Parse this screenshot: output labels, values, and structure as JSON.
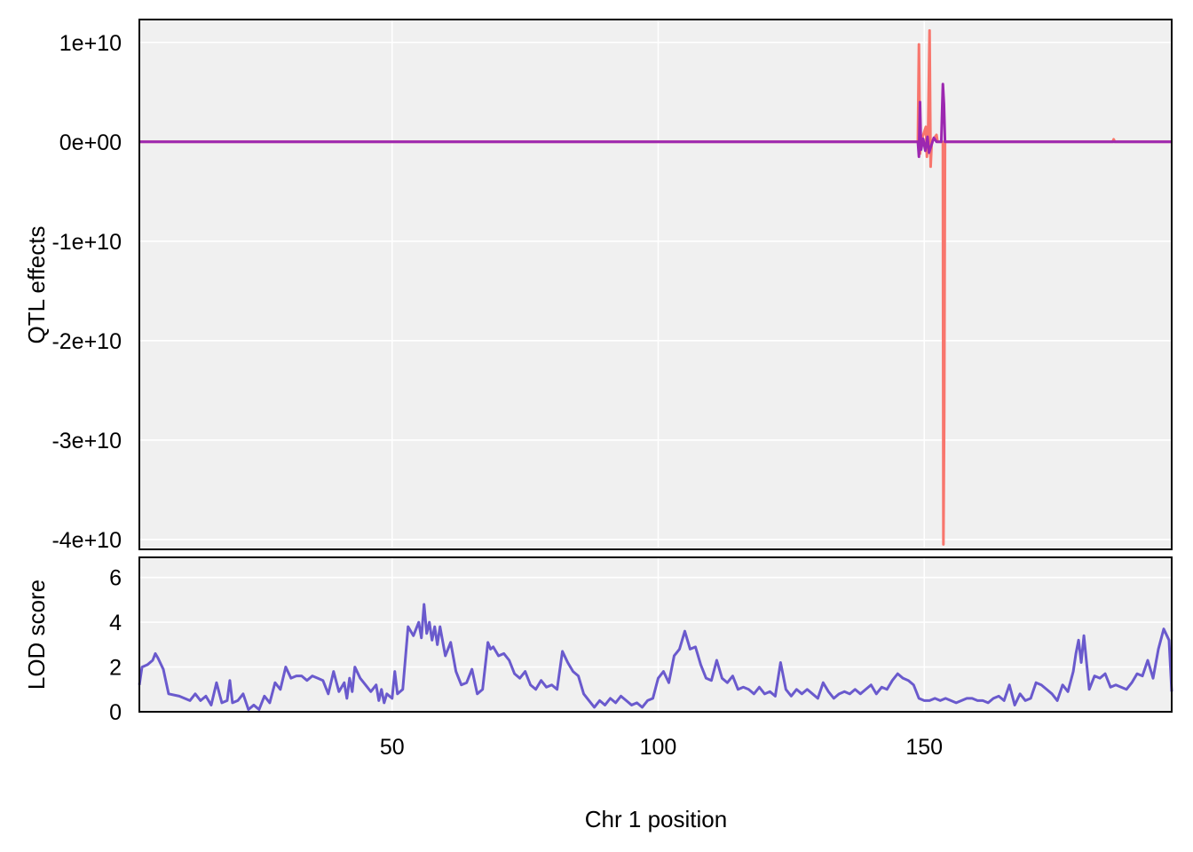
{
  "chart_data": [
    {
      "type": "line",
      "panel": "effects",
      "ylabel": "QTL effects",
      "xlim": [
        2.5,
        196.5
      ],
      "ylim": [
        -41000000000,
        12300000000
      ],
      "y_ticks": [
        {
          "value": 10000000000,
          "label": "1e+10"
        },
        {
          "value": 0,
          "label": "0e+00"
        },
        {
          "value": -10000000000,
          "label": "-1e+10"
        },
        {
          "value": -20000000000,
          "label": "-2e+10"
        },
        {
          "value": -30000000000,
          "label": "-3e+10"
        },
        {
          "value": -40000000000,
          "label": "-4e+10"
        }
      ],
      "grid": true,
      "series": [
        {
          "color": "#F8766D",
          "points": [
            [
              2.5,
              0
            ],
            [
              148.8,
              0
            ],
            [
              149.0,
              9800000000
            ],
            [
              149.2,
              -1200000000
            ],
            [
              149.4,
              0
            ],
            [
              150.3,
              1500000000
            ],
            [
              150.5,
              -1500000000
            ],
            [
              150.7,
              0
            ],
            [
              151.0,
              11200000000
            ],
            [
              151.2,
              -2500000000
            ],
            [
              151.4,
              0
            ],
            [
              152.3,
              700000000
            ],
            [
              152.5,
              0
            ],
            [
              153.5,
              0
            ],
            [
              153.6,
              -40500000000
            ],
            [
              153.75,
              -27500000000
            ],
            [
              153.9,
              0
            ],
            [
              185.4,
              0
            ],
            [
              185.6,
              250000000
            ],
            [
              185.8,
              0
            ],
            [
              196.5,
              0
            ]
          ]
        },
        {
          "color": "#9C27B0",
          "points": [
            [
              2.5,
              0
            ],
            [
              148.8,
              0
            ],
            [
              149.0,
              -1500000000
            ],
            [
              149.2,
              4000000000
            ],
            [
              149.4,
              -800000000
            ],
            [
              149.8,
              300000000
            ],
            [
              150.2,
              -900000000
            ],
            [
              150.6,
              500000000
            ],
            [
              150.9,
              -1100000000
            ],
            [
              151.3,
              -400000000
            ],
            [
              151.8,
              400000000
            ],
            [
              152.3,
              0
            ],
            [
              153.2,
              0
            ],
            [
              153.5,
              5800000000
            ],
            [
              153.7,
              3800000000
            ],
            [
              153.9,
              0
            ],
            [
              196.5,
              0
            ]
          ]
        }
      ]
    },
    {
      "type": "line",
      "panel": "lod",
      "ylabel": "LOD score",
      "xlabel": "Chr 1 position",
      "xlim": [
        2.5,
        196.5
      ],
      "ylim": [
        0,
        6.9
      ],
      "x_ticks": [
        {
          "value": 50,
          "label": "50"
        },
        {
          "value": 100,
          "label": "100"
        },
        {
          "value": 150,
          "label": "150"
        }
      ],
      "y_ticks": [
        {
          "value": 0,
          "label": "0"
        },
        {
          "value": 2,
          "label": "2"
        },
        {
          "value": 4,
          "label": "4"
        },
        {
          "value": 6,
          "label": "6"
        }
      ],
      "grid": true,
      "series": [
        {
          "color": "#6A5ACD",
          "points": [
            [
              2.5,
              1.2
            ],
            [
              3,
              2.0
            ],
            [
              4,
              2.1
            ],
            [
              5,
              2.3
            ],
            [
              5.5,
              2.6
            ],
            [
              6,
              2.4
            ],
            [
              7,
              1.9
            ],
            [
              8,
              0.8
            ],
            [
              10,
              0.7
            ],
            [
              12,
              0.5
            ],
            [
              13,
              0.8
            ],
            [
              14,
              0.5
            ],
            [
              15,
              0.7
            ],
            [
              16,
              0.3
            ],
            [
              17,
              1.3
            ],
            [
              18,
              0.4
            ],
            [
              19,
              0.5
            ],
            [
              19.5,
              1.4
            ],
            [
              20,
              0.4
            ],
            [
              21,
              0.5
            ],
            [
              22,
              0.8
            ],
            [
              23,
              0.1
            ],
            [
              24,
              0.3
            ],
            [
              25,
              0.1
            ],
            [
              26,
              0.7
            ],
            [
              27,
              0.4
            ],
            [
              28,
              1.3
            ],
            [
              29,
              1.0
            ],
            [
              30,
              2.0
            ],
            [
              31,
              1.5
            ],
            [
              32,
              1.6
            ],
            [
              33,
              1.6
            ],
            [
              34,
              1.4
            ],
            [
              35,
              1.6
            ],
            [
              36,
              1.5
            ],
            [
              37,
              1.4
            ],
            [
              38,
              0.8
            ],
            [
              39,
              1.8
            ],
            [
              40,
              0.9
            ],
            [
              41,
              1.3
            ],
            [
              41.5,
              0.6
            ],
            [
              42,
              1.5
            ],
            [
              42.5,
              0.9
            ],
            [
              43,
              2.0
            ],
            [
              44,
              1.5
            ],
            [
              45,
              1.2
            ],
            [
              46,
              0.9
            ],
            [
              47,
              1.2
            ],
            [
              47.5,
              0.5
            ],
            [
              48,
              1.0
            ],
            [
              48.5,
              0.4
            ],
            [
              49,
              0.8
            ],
            [
              50,
              0.6
            ],
            [
              50.5,
              1.8
            ],
            [
              51,
              0.8
            ],
            [
              52,
              1.0
            ],
            [
              53,
              3.8
            ],
            [
              54,
              3.4
            ],
            [
              55,
              4.0
            ],
            [
              55.5,
              3.3
            ],
            [
              56,
              4.8
            ],
            [
              56.5,
              3.5
            ],
            [
              57,
              4.0
            ],
            [
              57.5,
              3.2
            ],
            [
              58,
              3.8
            ],
            [
              58.5,
              3.0
            ],
            [
              59,
              3.8
            ],
            [
              60,
              2.5
            ],
            [
              61,
              3.1
            ],
            [
              62,
              1.8
            ],
            [
              63,
              1.2
            ],
            [
              64,
              1.3
            ],
            [
              65,
              1.9
            ],
            [
              66,
              0.8
            ],
            [
              67,
              1.0
            ],
            [
              68,
              3.1
            ],
            [
              68.5,
              2.8
            ],
            [
              69,
              2.9
            ],
            [
              70,
              2.5
            ],
            [
              71,
              2.6
            ],
            [
              72,
              2.3
            ],
            [
              73,
              1.7
            ],
            [
              74,
              1.5
            ],
            [
              75,
              1.8
            ],
            [
              76,
              1.2
            ],
            [
              77,
              1.0
            ],
            [
              78,
              1.4
            ],
            [
              79,
              1.1
            ],
            [
              80,
              1.2
            ],
            [
              81,
              1.0
            ],
            [
              82,
              2.7
            ],
            [
              83,
              2.2
            ],
            [
              84,
              1.8
            ],
            [
              85,
              1.6
            ],
            [
              86,
              0.8
            ],
            [
              87,
              0.5
            ],
            [
              88,
              0.2
            ],
            [
              89,
              0.5
            ],
            [
              90,
              0.3
            ],
            [
              91,
              0.6
            ],
            [
              92,
              0.4
            ],
            [
              93,
              0.7
            ],
            [
              94,
              0.5
            ],
            [
              95,
              0.3
            ],
            [
              96,
              0.4
            ],
            [
              97,
              0.2
            ],
            [
              98,
              0.5
            ],
            [
              99,
              0.6
            ],
            [
              100,
              1.5
            ],
            [
              101,
              1.8
            ],
            [
              102,
              1.3
            ],
            [
              103,
              2.5
            ],
            [
              104,
              2.8
            ],
            [
              105,
              3.6
            ],
            [
              106,
              2.8
            ],
            [
              107,
              2.9
            ],
            [
              108,
              2.1
            ],
            [
              109,
              1.5
            ],
            [
              110,
              1.4
            ],
            [
              111,
              2.3
            ],
            [
              112,
              1.5
            ],
            [
              113,
              1.3
            ],
            [
              114,
              1.6
            ],
            [
              115,
              1.0
            ],
            [
              116,
              1.1
            ],
            [
              117,
              1.0
            ],
            [
              118,
              0.8
            ],
            [
              119,
              1.1
            ],
            [
              120,
              0.8
            ],
            [
              121,
              0.9
            ],
            [
              122,
              0.7
            ],
            [
              123,
              2.2
            ],
            [
              124,
              1.0
            ],
            [
              125,
              0.7
            ],
            [
              126,
              1.0
            ],
            [
              127,
              0.8
            ],
            [
              128,
              1.0
            ],
            [
              129,
              0.8
            ],
            [
              130,
              0.6
            ],
            [
              131,
              1.3
            ],
            [
              132,
              0.9
            ],
            [
              133,
              0.6
            ],
            [
              134,
              0.8
            ],
            [
              135,
              0.9
            ],
            [
              136,
              0.8
            ],
            [
              137,
              1.0
            ],
            [
              138,
              0.8
            ],
            [
              139,
              1.0
            ],
            [
              140,
              1.2
            ],
            [
              141,
              0.8
            ],
            [
              142,
              1.1
            ],
            [
              143,
              1.0
            ],
            [
              144,
              1.4
            ],
            [
              145,
              1.7
            ],
            [
              146,
              1.5
            ],
            [
              147,
              1.4
            ],
            [
              148,
              1.2
            ],
            [
              149,
              0.6
            ],
            [
              150,
              0.5
            ],
            [
              151,
              0.5
            ],
            [
              152,
              0.6
            ],
            [
              153,
              0.5
            ],
            [
              154,
              0.6
            ],
            [
              155,
              0.5
            ],
            [
              156,
              0.4
            ],
            [
              157,
              0.5
            ],
            [
              158,
              0.6
            ],
            [
              159,
              0.6
            ],
            [
              160,
              0.5
            ],
            [
              161,
              0.5
            ],
            [
              162,
              0.4
            ],
            [
              163,
              0.6
            ],
            [
              164,
              0.7
            ],
            [
              165,
              0.5
            ],
            [
              166,
              1.2
            ],
            [
              167,
              0.3
            ],
            [
              168,
              0.8
            ],
            [
              169,
              0.5
            ],
            [
              170,
              0.6
            ],
            [
              171,
              1.3
            ],
            [
              172,
              1.2
            ],
            [
              173,
              1.0
            ],
            [
              174,
              0.8
            ],
            [
              175,
              0.5
            ],
            [
              176,
              1.2
            ],
            [
              177,
              0.9
            ],
            [
              178,
              1.8
            ],
            [
              178.5,
              2.6
            ],
            [
              179,
              3.2
            ],
            [
              179.5,
              2.2
            ],
            [
              180,
              3.4
            ],
            [
              181,
              1.0
            ],
            [
              182,
              1.6
            ],
            [
              183,
              1.5
            ],
            [
              184,
              1.7
            ],
            [
              185,
              1.1
            ],
            [
              186,
              1.2
            ],
            [
              187,
              1.1
            ],
            [
              188,
              1.0
            ],
            [
              189,
              1.3
            ],
            [
              190,
              1.7
            ],
            [
              191,
              1.6
            ],
            [
              192,
              2.3
            ],
            [
              193,
              1.5
            ],
            [
              194,
              2.8
            ],
            [
              195,
              3.7
            ],
            [
              196,
              3.2
            ],
            [
              196.5,
              0.9
            ]
          ]
        }
      ]
    }
  ]
}
